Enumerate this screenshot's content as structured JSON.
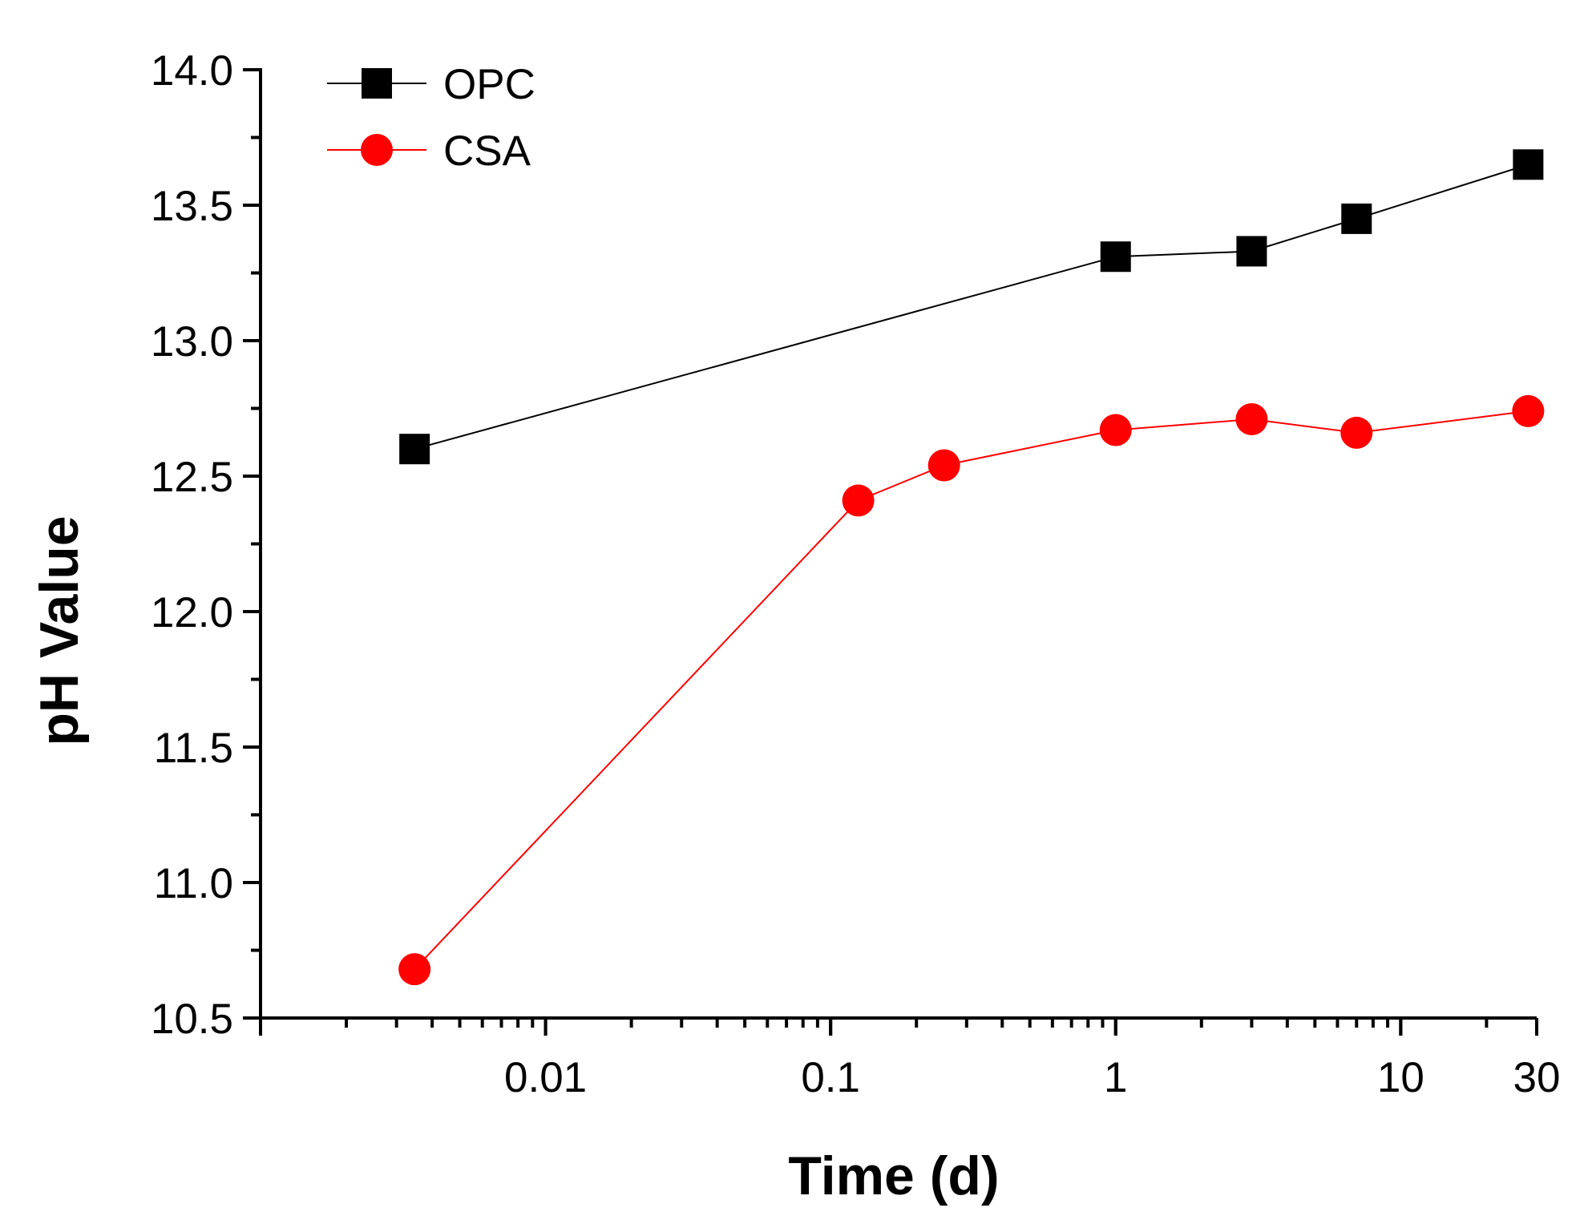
{
  "chart_data": {
    "type": "line",
    "title": "",
    "xlabel": "Time (d)",
    "ylabel": "pH Value",
    "x_scale": "log",
    "xlim": [
      0.001,
      30
    ],
    "ylim": [
      10.5,
      14.0
    ],
    "x_ticks": [
      {
        "value": 0.01,
        "label": "0.01"
      },
      {
        "value": 0.1,
        "label": "0.1"
      },
      {
        "value": 1,
        "label": "1"
      },
      {
        "value": 10,
        "label": "10"
      },
      {
        "value": 30,
        "label": "30"
      }
    ],
    "y_ticks": [
      {
        "value": 10.5,
        "label": "10.5"
      },
      {
        "value": 11.0,
        "label": "11.0"
      },
      {
        "value": 11.5,
        "label": "11.5"
      },
      {
        "value": 12.0,
        "label": "12.0"
      },
      {
        "value": 12.5,
        "label": "12.5"
      },
      {
        "value": 13.0,
        "label": "13.0"
      },
      {
        "value": 13.5,
        "label": "13.5"
      },
      {
        "value": 14.0,
        "label": "14.0"
      }
    ],
    "legend_position": "top-left",
    "grid": false,
    "series": [
      {
        "name": "OPC",
        "color": "#000000",
        "marker": "square",
        "x": [
          0.00347,
          1,
          3,
          7,
          28
        ],
        "y": [
          12.6,
          13.31,
          13.33,
          13.45,
          13.65
        ]
      },
      {
        "name": "CSA",
        "color": "#ff0000",
        "marker": "circle",
        "x": [
          0.00347,
          0.125,
          0.25,
          1,
          3,
          7,
          28
        ],
        "y": [
          10.68,
          12.41,
          12.54,
          12.67,
          12.71,
          12.66,
          12.74
        ]
      }
    ]
  }
}
